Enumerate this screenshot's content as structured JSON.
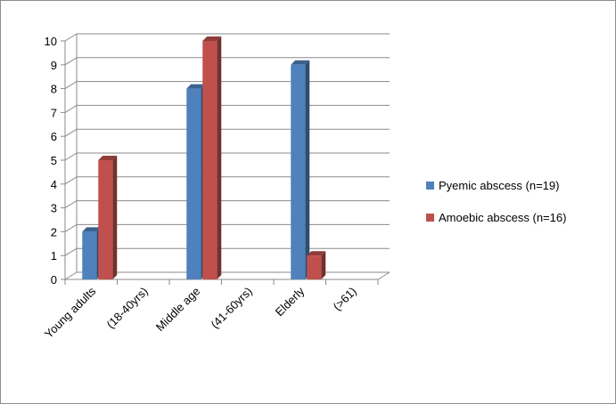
{
  "chart_data": {
    "type": "bar",
    "categories": [
      "Young adults",
      "(18-40yrs)",
      "Middle age",
      "(41-60yrs)",
      "Elderly",
      "(>61)"
    ],
    "series": [
      {
        "name": "Pyemic abscess (n=19)",
        "values": [
          2,
          null,
          8,
          null,
          9,
          null
        ],
        "color": "#4f81bd"
      },
      {
        "name": "Amoebic abscess (n=16)",
        "values": [
          5,
          null,
          10,
          null,
          1,
          null
        ],
        "color": "#c0504d"
      }
    ],
    "title": "",
    "xlabel": "",
    "ylabel": "",
    "ylim": [
      0,
      10
    ],
    "yticks": [
      0,
      1,
      2,
      3,
      4,
      5,
      6,
      7,
      8,
      9,
      10
    ],
    "grid": true,
    "legend_position": "right",
    "style": "3d-clustered-columns"
  }
}
